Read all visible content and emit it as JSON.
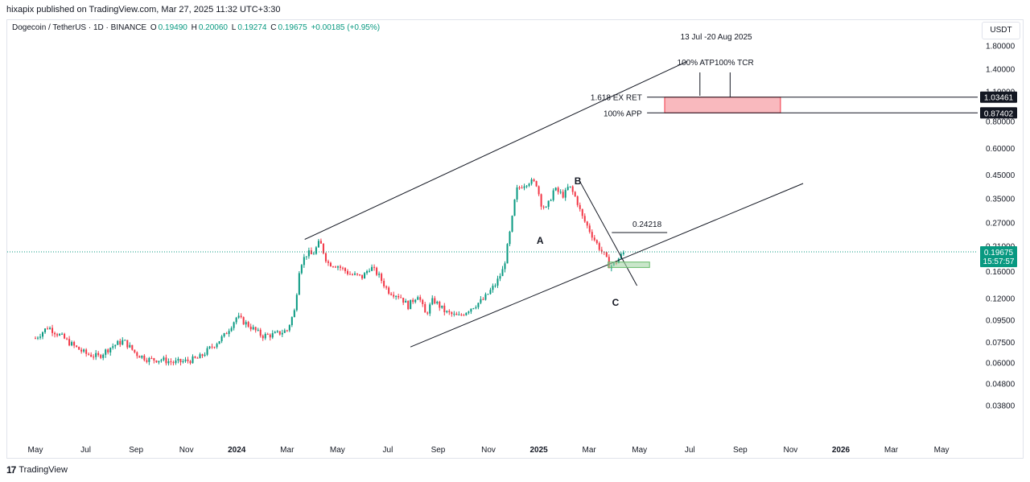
{
  "header": {
    "publisher": "hixapix published on TradingView.com, Mar 27, 2025 11:32 UTC+3:30",
    "symbol": "Dogecoin / TetherUS · 1D · BINANCE",
    "ohlc": [
      {
        "label": "O",
        "value": "0.19490"
      },
      {
        "label": "H",
        "value": "0.20060"
      },
      {
        "label": "L",
        "value": "0.19274"
      },
      {
        "label": "C",
        "value": "0.19675"
      }
    ],
    "change": "+0.00185 (+0.95%)",
    "currency": "USDT"
  },
  "footer": {
    "brand": "TradingView",
    "logo_glyph": "17"
  },
  "colors": {
    "up": "#089981",
    "down": "#f23645",
    "zone": "#f7a1a8",
    "zone_border": "#f23645",
    "green_box": "#a5d6a7",
    "price_badge": "#089981",
    "label_badge": "#131722"
  },
  "chart_data": {
    "type": "candlestick",
    "y_scale": "log",
    "ylim": [
      0.032,
      2.05
    ],
    "y_ticks": [
      "1.80000",
      "1.40000",
      "1.10000",
      "0.80000",
      "0.60000",
      "0.45000",
      "0.35000",
      "0.27000",
      "0.21000",
      "0.16000",
      "0.12000",
      "0.09500",
      "0.07500",
      "0.06000",
      "0.04800",
      "0.03800"
    ],
    "x_ticks": [
      {
        "label": "May",
        "month": 0,
        "bold": false
      },
      {
        "label": "Jul",
        "month": 2,
        "bold": false
      },
      {
        "label": "Sep",
        "month": 4,
        "bold": false
      },
      {
        "label": "Nov",
        "month": 6,
        "bold": false
      },
      {
        "label": "2024",
        "month": 8,
        "bold": true
      },
      {
        "label": "Mar",
        "month": 10,
        "bold": false
      },
      {
        "label": "May",
        "month": 12,
        "bold": false
      },
      {
        "label": "Jul",
        "month": 14,
        "bold": false
      },
      {
        "label": "Sep",
        "month": 16,
        "bold": false
      },
      {
        "label": "Nov",
        "month": 18,
        "bold": false
      },
      {
        "label": "2025",
        "month": 20,
        "bold": true
      },
      {
        "label": "Mar",
        "month": 22,
        "bold": false
      },
      {
        "label": "May",
        "month": 24,
        "bold": false
      },
      {
        "label": "Jul",
        "month": 26,
        "bold": false
      },
      {
        "label": "Sep",
        "month": 28,
        "bold": false
      },
      {
        "label": "Nov",
        "month": 30,
        "bold": false
      },
      {
        "label": "2026",
        "month": 32,
        "bold": true
      },
      {
        "label": "Mar",
        "month": 34,
        "bold": false
      },
      {
        "label": "May",
        "month": 36,
        "bold": false
      }
    ],
    "price_path": [
      [
        0.0,
        0.078
      ],
      [
        0.5,
        0.088
      ],
      [
        1.0,
        0.08
      ],
      [
        1.5,
        0.072
      ],
      [
        2.0,
        0.066
      ],
      [
        2.5,
        0.064
      ],
      [
        3.0,
        0.071
      ],
      [
        3.5,
        0.076
      ],
      [
        4.0,
        0.066
      ],
      [
        4.5,
        0.062
      ],
      [
        5.0,
        0.062
      ],
      [
        5.5,
        0.06
      ],
      [
        6.0,
        0.061
      ],
      [
        6.5,
        0.063
      ],
      [
        7.0,
        0.071
      ],
      [
        7.5,
        0.08
      ],
      [
        8.0,
        0.098
      ],
      [
        8.5,
        0.089
      ],
      [
        9.0,
        0.08
      ],
      [
        9.5,
        0.081
      ],
      [
        10.0,
        0.085
      ],
      [
        10.3,
        0.105
      ],
      [
        10.5,
        0.17
      ],
      [
        10.8,
        0.195
      ],
      [
        11.0,
        0.19
      ],
      [
        11.3,
        0.22
      ],
      [
        11.6,
        0.175
      ],
      [
        12.0,
        0.17
      ],
      [
        12.5,
        0.155
      ],
      [
        13.0,
        0.15
      ],
      [
        13.3,
        0.168
      ],
      [
        13.6,
        0.155
      ],
      [
        14.0,
        0.13
      ],
      [
        14.5,
        0.122
      ],
      [
        14.8,
        0.11
      ],
      [
        15.2,
        0.125
      ],
      [
        15.5,
        0.1
      ],
      [
        15.8,
        0.118
      ],
      [
        16.3,
        0.103
      ],
      [
        16.8,
        0.098
      ],
      [
        17.3,
        0.108
      ],
      [
        17.8,
        0.118
      ],
      [
        18.3,
        0.14
      ],
      [
        18.6,
        0.165
      ],
      [
        18.9,
        0.26
      ],
      [
        19.1,
        0.38
      ],
      [
        19.3,
        0.4
      ],
      [
        19.6,
        0.42
      ],
      [
        19.9,
        0.41
      ],
      [
        20.1,
        0.33
      ],
      [
        20.3,
        0.31
      ],
      [
        20.6,
        0.385
      ],
      [
        21.0,
        0.36
      ],
      [
        21.2,
        0.4
      ],
      [
        21.5,
        0.345
      ],
      [
        21.7,
        0.29
      ],
      [
        22.0,
        0.25
      ],
      [
        22.3,
        0.215
      ],
      [
        22.6,
        0.19
      ],
      [
        22.8,
        0.17
      ],
      [
        23.0,
        0.172
      ],
      [
        23.2,
        0.185
      ],
      [
        23.4,
        0.19675
      ]
    ],
    "annotations": {
      "date_range": "13 Jul -20 Aug 2025",
      "atp": "100% ATP",
      "tcr": "100% TCR",
      "ex_ret": "1.618 EX RET",
      "app": "100% APP",
      "level_ex_ret": "1.03461",
      "level_app": "0.87402",
      "resistance": "0.24218",
      "wave_a": "A",
      "wave_b": "B",
      "wave_c": "C",
      "current_price": "0.19675",
      "countdown": "15:57:57"
    },
    "levels": {
      "ex_ret": 1.03461,
      "app": 0.87402,
      "resistance": 0.24218,
      "current": 0.19675,
      "green_box_low": 0.1665,
      "green_box_high": 0.1765
    },
    "channel": {
      "upper": [
        [
          10.7,
          0.225
        ],
        [
          24.0,
          1.3
        ],
        [
          25.9,
          1.52
        ]
      ],
      "lower": [
        [
          14.9,
          0.071
        ],
        [
          22.8,
          0.158
        ],
        [
          30.5,
          0.41
        ]
      ]
    },
    "wave_b_line": [
      [
        21.6,
        0.425
      ],
      [
        23.9,
        0.137
      ]
    ],
    "zone": {
      "x_from": 25.0,
      "x_to": 29.6
    }
  }
}
